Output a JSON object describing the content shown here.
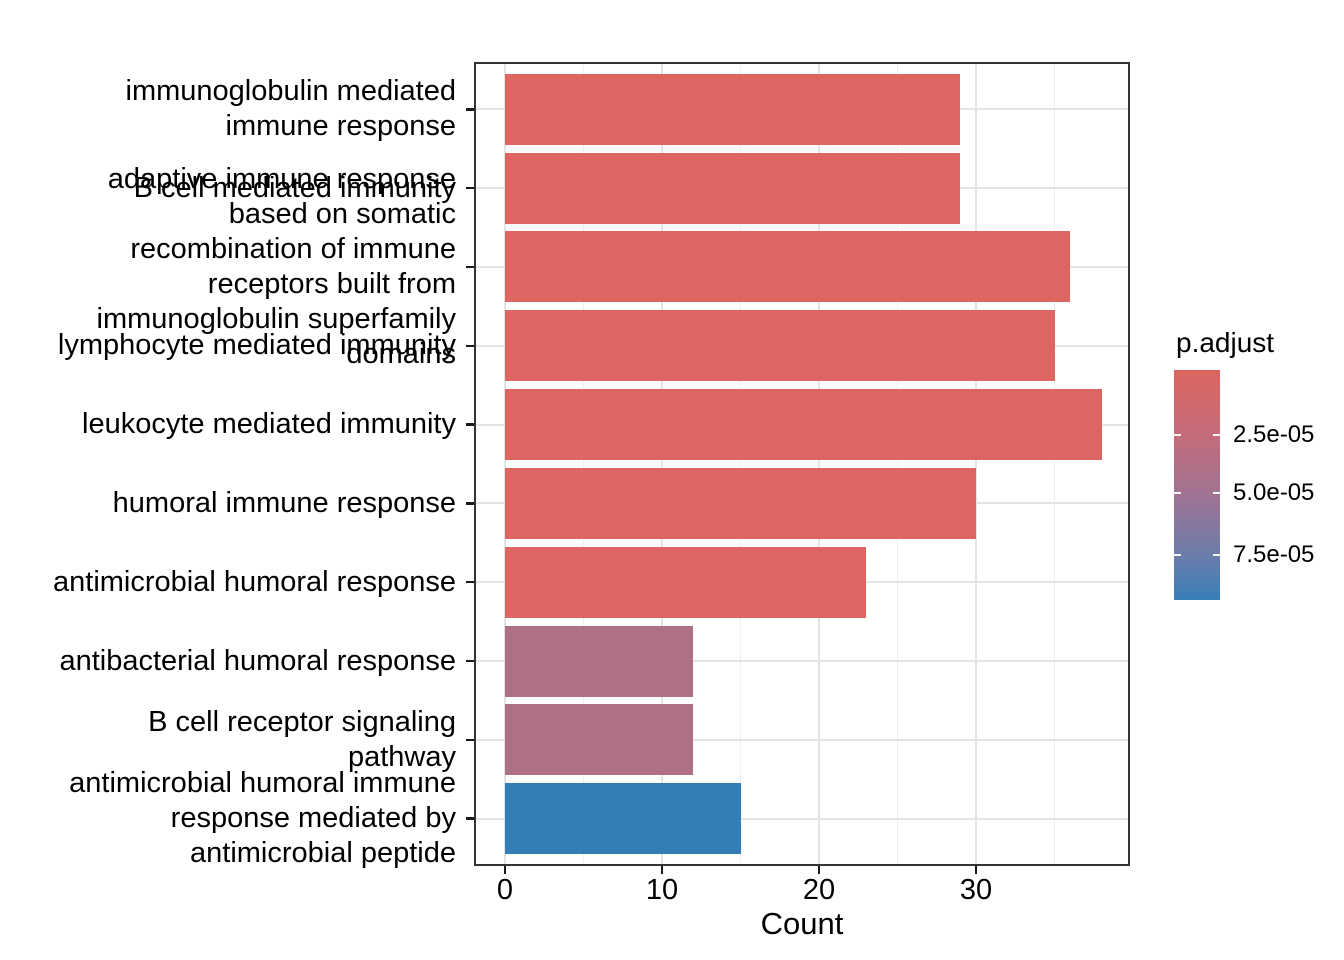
{
  "chart_data": {
    "type": "bar",
    "orientation": "horizontal",
    "title": "",
    "xlabel": "Count",
    "ylabel": "",
    "x_ticks": [
      0,
      10,
      20,
      30
    ],
    "x_minor_ticks": [
      5,
      15,
      25,
      35
    ],
    "xlim": [
      -1.9,
      39.9
    ],
    "grid": "major-and-minor",
    "categories": [
      {
        "label": "immunoglobulin mediated immune response",
        "lines": [
          "immunoglobulin mediated",
          "immune response"
        ],
        "count": 29,
        "fill": "#dd6662"
      },
      {
        "label": "B cell mediated immunity",
        "lines": [
          "B cell mediated immunity"
        ],
        "count": 29,
        "fill": "#dd6662"
      },
      {
        "label": "adaptive immune response based on somatic recombination of immune receptors built from immunoglobulin superfamily domains",
        "lines": [
          "adaptive immune response",
          "based on somatic",
          "recombination of immune",
          "receptors built from",
          "immunoglobulin superfamily",
          "domains"
        ],
        "count": 36,
        "fill": "#dd6662"
      },
      {
        "label": "lymphocyte mediated immunity",
        "lines": [
          "lymphocyte mediated immunity"
        ],
        "count": 35,
        "fill": "#dd6662"
      },
      {
        "label": "leukocyte mediated immunity",
        "lines": [
          "leukocyte mediated immunity"
        ],
        "count": 38,
        "fill": "#dd6662"
      },
      {
        "label": "humoral immune response",
        "lines": [
          "humoral immune response"
        ],
        "count": 30,
        "fill": "#dd6662"
      },
      {
        "label": "antimicrobial humoral response",
        "lines": [
          "antimicrobial humoral response"
        ],
        "count": 23,
        "fill": "#dd6662"
      },
      {
        "label": "antibacterial humoral response",
        "lines": [
          "antibacterial humoral response"
        ],
        "count": 12,
        "fill": "#ae7183"
      },
      {
        "label": "B cell receptor signaling pathway",
        "lines": [
          "B cell receptor signaling",
          "pathway"
        ],
        "count": 12,
        "fill": "#ae7183"
      },
      {
        "label": "antimicrobial humoral immune response mediated by antimicrobial peptide",
        "lines": [
          "antimicrobial humoral immune",
          "response mediated by",
          "antimicrobial peptide"
        ],
        "count": 15,
        "fill": "#327fb8"
      }
    ],
    "legend": {
      "title": "p.adjust",
      "position": "right",
      "tick_labels": [
        "2.5e-05",
        "5.0e-05",
        "7.5e-05"
      ],
      "tick_positions_pct": [
        28.3,
        53.5,
        80.4
      ],
      "gradient_stops": [
        "#dc6460",
        "#c46c7a",
        "#a27392",
        "#6c7daa",
        "#387eb8"
      ],
      "gradient_pcts": [
        0,
        28.3,
        53.5,
        80.4,
        100
      ],
      "low_color": "#dc6460",
      "high_color": "#387eb8"
    }
  }
}
